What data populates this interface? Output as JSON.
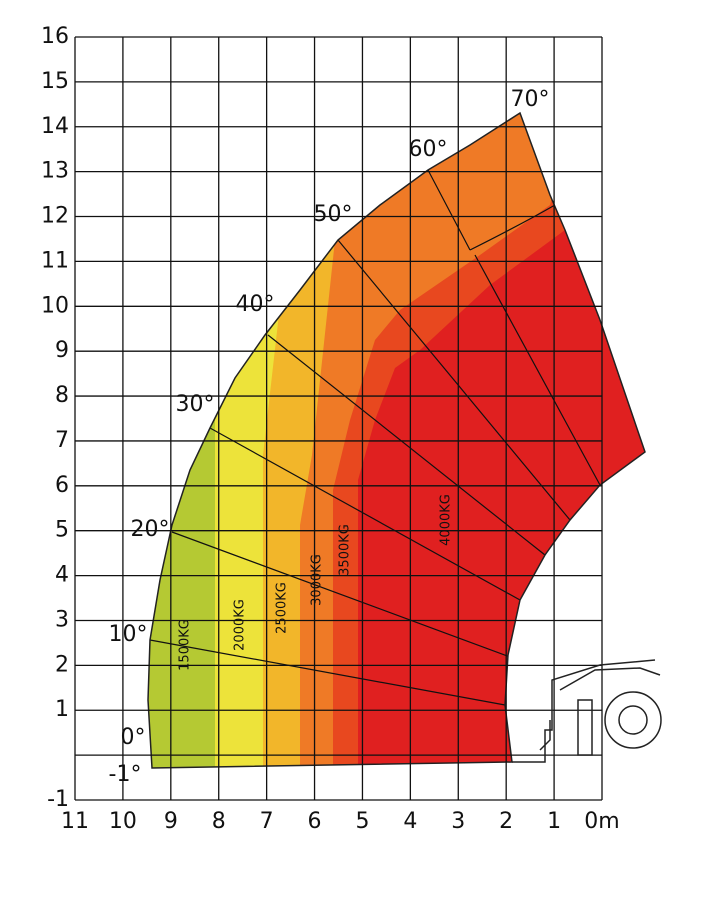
{
  "x_axis": {
    "labels": [
      "11",
      "10",
      "9",
      "8",
      "7",
      "6",
      "5",
      "4",
      "3",
      "2",
      "1",
      "0m"
    ]
  },
  "y_axis": {
    "labels": [
      "16",
      "15",
      "14",
      "13",
      "12",
      "11",
      "10",
      "9",
      "8",
      "7",
      "6",
      "5",
      "4",
      "3",
      "2",
      "1",
      "-1"
    ]
  },
  "angles": [
    "70°",
    "60°",
    "50°",
    "40°",
    "30°",
    "20°",
    "10°",
    "0°",
    "-1°"
  ],
  "loads": [
    "1500KG",
    "2000KG",
    "2500KG",
    "3000KG",
    "3500KG",
    "4000KG"
  ]
}
